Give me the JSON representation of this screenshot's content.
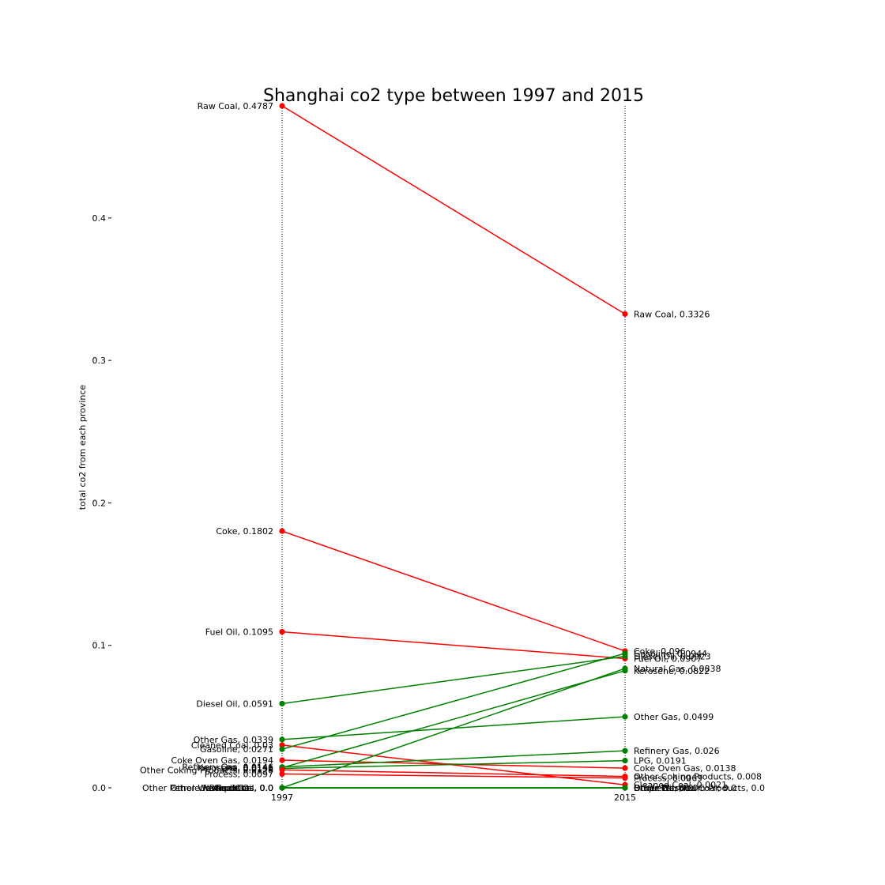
{
  "chart_data": {
    "type": "line",
    "title": "Shanghai co2 type between 1997 and 2015",
    "xlabel": "",
    "ylabel": "total co2 from each province",
    "x": [
      "1997",
      "2015"
    ],
    "yticks": [
      "0.0",
      "0.1",
      "0.2",
      "0.3",
      "0.4"
    ],
    "ylim": [
      0,
      0.4787
    ],
    "grid": false,
    "colors": {
      "decrease": "#ff0000",
      "increase": "#008000"
    },
    "series": [
      {
        "name": "Raw Coal",
        "values": [
          0.4787,
          0.3326
        ],
        "labels": [
          "Raw Coal, 0.4787",
          "Raw Coal, 0.3326"
        ]
      },
      {
        "name": "Coke",
        "values": [
          0.1802,
          0.096
        ],
        "labels": [
          "Coke, 0.1802",
          "Coke, 0.096"
        ]
      },
      {
        "name": "Fuel Oil",
        "values": [
          0.1095,
          0.0907
        ],
        "labels": [
          "Fuel Oil, 0.1095",
          "Fuel Oil, 0.0907"
        ]
      },
      {
        "name": "Diesel Oil",
        "values": [
          0.0591,
          0.0923
        ],
        "labels": [
          "Diesel Oil, 0.0591",
          "Diesel Oil, 0.0923"
        ]
      },
      {
        "name": "Other Gas",
        "values": [
          0.0339,
          0.0499
        ],
        "labels": [
          "Other Gas, 0.0339",
          "Other Gas, 0.0499"
        ]
      },
      {
        "name": "Cleaned Coal",
        "values": [
          0.03,
          0.0021
        ],
        "labels": [
          "Cleaned Coal, 0.03",
          "Cleaned Coal, 0.0021"
        ]
      },
      {
        "name": "Gasoline",
        "values": [
          0.0271,
          0.0944
        ],
        "labels": [
          "Gasoline, 0.0271",
          "Gasoline, 0.0944"
        ]
      },
      {
        "name": "Coke Oven Gas",
        "values": [
          0.0194,
          0.0138
        ],
        "labels": [
          "Coke Oven Gas, 0.0194",
          "Coke Oven Gas, 0.0138"
        ]
      },
      {
        "name": "Refinery Gas",
        "values": [
          0.0146,
          0.026
        ],
        "labels": [
          "Refinery Gas, 0.0146",
          "Refinery Gas, 0.026"
        ]
      },
      {
        "name": "Kerosene",
        "values": [
          0.0141,
          0.0822
        ],
        "labels": [
          "Kerosene, 0.0141",
          "Kerosene, 0.0822"
        ]
      },
      {
        "name": "LPG",
        "values": [
          0.0136,
          0.0191
        ],
        "labels": [
          "LPG, 0.0136",
          "LPG, 0.0191"
        ]
      },
      {
        "name": "Other Coking Products",
        "values": [
          0.0126,
          0.008
        ],
        "labels": [
          "Other Coking Products, 0.0126",
          "Other Coking Products, 0.008"
        ]
      },
      {
        "name": "Process",
        "values": [
          0.0097,
          0.0069
        ],
        "labels": [
          "Process, 0.0097",
          "Process, 0.0069"
        ]
      },
      {
        "name": "Natural Gas",
        "values": [
          0.0,
          0.0838
        ],
        "labels": [
          "Natural Gas, 0.0",
          "Natural Gas, 0.0838"
        ]
      },
      {
        "name": "Other Washed Coal",
        "values": [
          0.0,
          0.0
        ],
        "labels": [
          "Other Washed Coal, 0.0",
          "Other Washed Coal, 0.0"
        ]
      },
      {
        "name": "Briquettes",
        "values": [
          0.0,
          0.0
        ],
        "labels": [
          "Briquettes, 0.0",
          "Briquettes, 0.0"
        ]
      },
      {
        "name": "Crude Oil",
        "values": [
          0.0,
          0.0
        ],
        "labels": [
          "Crude Oil, 0.0",
          "Crude Oil, 0.0"
        ]
      },
      {
        "name": "Other Petroleum Products",
        "values": [
          0.0,
          0.0
        ],
        "labels": [
          "Other Petroleum Products, 0.0",
          "Other Petroleum Products, 0.0"
        ]
      }
    ]
  }
}
